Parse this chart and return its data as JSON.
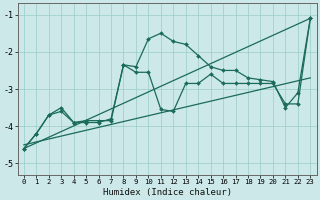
{
  "xlabel": "Humidex (Indice chaleur)",
  "bg_color": "#cce8e8",
  "grid_color": "#99cccc",
  "line_color": "#1a6b5a",
  "xlim": [
    -0.5,
    23.5
  ],
  "ylim": [
    -5.3,
    -0.7
  ],
  "yticks": [
    -5,
    -4,
    -3,
    -2,
    -1
  ],
  "xticks": [
    0,
    1,
    2,
    3,
    4,
    5,
    6,
    7,
    8,
    9,
    10,
    11,
    12,
    13,
    14,
    15,
    16,
    17,
    18,
    19,
    20,
    21,
    22,
    23
  ],
  "line1_x": [
    0,
    1,
    2,
    3,
    4,
    5,
    6,
    7,
    8,
    9,
    10,
    11,
    12,
    13,
    14,
    15,
    16,
    17,
    18,
    19,
    20,
    21,
    22,
    23
  ],
  "line1_y": [
    -4.6,
    -4.2,
    -3.7,
    -3.5,
    -3.9,
    -3.85,
    -3.85,
    -3.85,
    -2.35,
    -2.4,
    -1.65,
    -1.5,
    -1.72,
    -1.8,
    -2.1,
    -2.4,
    -2.5,
    -2.5,
    -2.7,
    -2.75,
    -2.8,
    -3.5,
    -3.1,
    -1.1
  ],
  "line2_x": [
    0,
    1,
    2,
    3,
    4,
    5,
    6,
    7,
    8,
    9,
    10,
    11,
    12,
    13,
    14,
    15,
    16,
    17,
    18,
    19,
    20,
    21,
    22,
    23
  ],
  "line2_y": [
    -4.6,
    -4.2,
    -3.7,
    -3.6,
    -3.9,
    -3.9,
    -3.9,
    -3.8,
    -2.35,
    -2.55,
    -2.55,
    -3.55,
    -3.6,
    -2.85,
    -2.85,
    -2.6,
    -2.85,
    -2.85,
    -2.85,
    -2.85,
    -2.85,
    -3.4,
    -3.4,
    -1.1
  ],
  "trend1_x": [
    0,
    23
  ],
  "trend1_y": [
    -4.6,
    -1.1
  ],
  "trend2_x": [
    0,
    23
  ],
  "trend2_y": [
    -4.5,
    -2.7
  ]
}
